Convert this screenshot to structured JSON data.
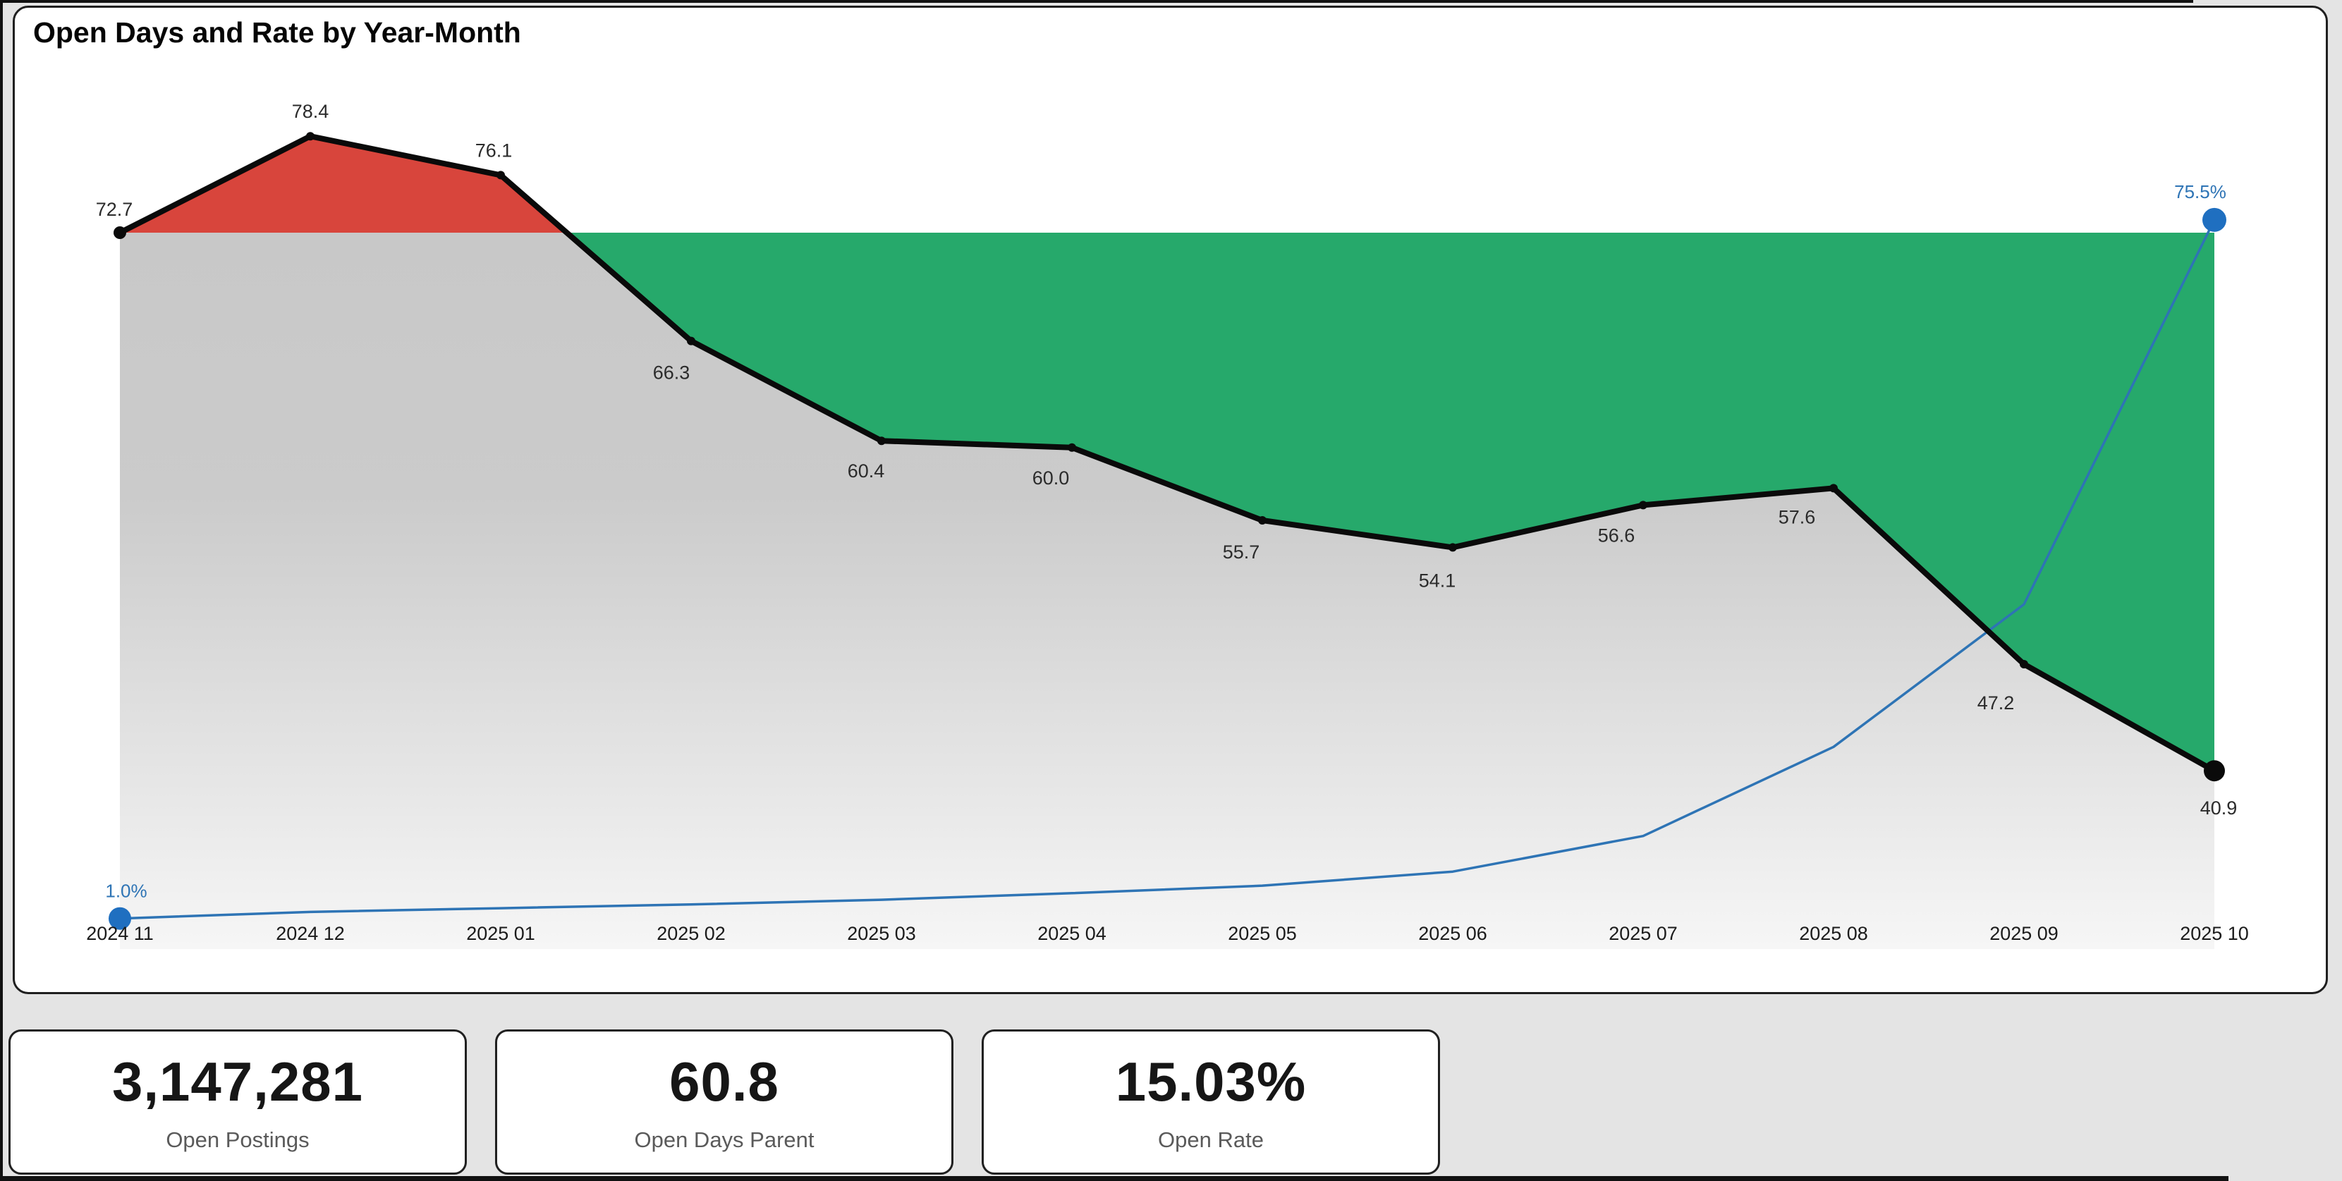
{
  "page": {
    "background": "#E4E4E4"
  },
  "chart_card": {
    "title": "Open Days and Rate by Year-Month"
  },
  "chart_data": {
    "type": "line",
    "title": "Open Days and Rate by Year-Month",
    "categories": [
      "2024 11",
      "2024 12",
      "2025 01",
      "2025 02",
      "2025 03",
      "2025 04",
      "2025 05",
      "2025 06",
      "2025 07",
      "2025 08",
      "2025 09",
      "2025 10"
    ],
    "series": [
      {
        "name": "Open Days",
        "axis": "primary",
        "color": "#0A0A0A",
        "values": [
          72.7,
          78.4,
          76.1,
          66.3,
          60.4,
          60.0,
          55.7,
          54.1,
          56.6,
          57.6,
          47.2,
          40.9
        ],
        "all_points_labeled": true
      },
      {
        "name": "Open Rate",
        "axis": "secondary",
        "color": "#2E74B5",
        "unit": "%",
        "values": [
          1.0,
          1.7,
          2.1,
          2.5,
          3.0,
          3.7,
          4.5,
          6.0,
          9.8,
          19.3,
          34.5,
          75.5
        ],
        "labeled_points": [
          {
            "index": 0,
            "label": "1.0%"
          },
          {
            "index": 11,
            "label": "75.5%"
          }
        ],
        "intermediate_values_estimated": true
      }
    ],
    "baseline": {
      "value": 72.7,
      "fill_above": "#D8453C",
      "fill_below": "#26A96B"
    },
    "area_under_line_gradient": {
      "top": "#C7C7C7",
      "bottom": "#F6F6F6"
    },
    "legend": "none",
    "grid": false,
    "xlabel": "",
    "ylabel": ""
  },
  "kpis": [
    {
      "value": "3,147,281",
      "label": "Open Postings"
    },
    {
      "value": "60.8",
      "label": "Open Days Parent"
    },
    {
      "value": "15.03%",
      "label": "Open Rate"
    }
  ],
  "colors": {
    "page_bg": "#E4E4E4",
    "card_border": "#202020",
    "green_area": "#26A96B",
    "red_area": "#D8453C",
    "gray_area_top": "#C7C7C7",
    "gray_area_bottom": "#F6F6F6",
    "days_line": "#0A0A0A",
    "rate_line": "#2E74B5",
    "rate_dot": "#1F6FC0",
    "data_label": "#2B2B2B",
    "axis_label": "#1B1B1B"
  }
}
